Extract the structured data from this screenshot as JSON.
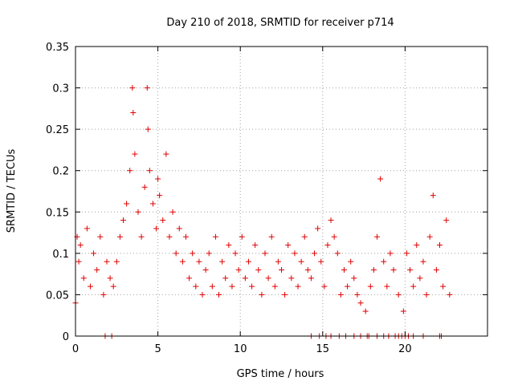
{
  "chart_data": {
    "type": "scatter",
    "title": "Day 210 of 2018, SRMTID for receiver p714",
    "xlabel": "GPS time / hours",
    "ylabel": "SRMTID / TECUs",
    "xlim": [
      0,
      25
    ],
    "ylim": [
      0,
      0.35
    ],
    "x_ticks": [
      0,
      5,
      10,
      15,
      20
    ],
    "x_tick_labels": [
      "0",
      "5",
      "10",
      "15",
      "20"
    ],
    "y_ticks": [
      0,
      0.05,
      0.1,
      0.15,
      0.2,
      0.25,
      0.3,
      0.35
    ],
    "y_tick_labels": [
      "0",
      "0.05",
      "0.1",
      "0.15",
      "0.2",
      "0.25",
      "0.3",
      "0.35"
    ],
    "grid": true,
    "marker": "plus",
    "series": [
      {
        "name": "SRMTID",
        "color": "#e00000",
        "x": [
          0.0,
          0.1,
          0.2,
          0.3,
          0.5,
          0.7,
          0.9,
          1.1,
          1.3,
          1.5,
          1.7,
          1.9,
          2.1,
          2.3,
          2.5,
          2.7,
          2.9,
          3.1,
          3.3,
          3.45,
          3.5,
          3.6,
          3.8,
          4.0,
          4.2,
          4.35,
          4.4,
          4.5,
          4.7,
          4.9,
          5.0,
          5.1,
          5.3,
          5.5,
          5.7,
          5.9,
          6.1,
          6.3,
          6.5,
          6.7,
          6.9,
          7.1,
          7.3,
          7.5,
          7.7,
          7.9,
          8.1,
          8.3,
          8.5,
          8.7,
          8.9,
          9.1,
          9.3,
          9.5,
          9.7,
          9.9,
          10.1,
          10.3,
          10.5,
          10.7,
          10.9,
          11.1,
          11.3,
          11.5,
          11.7,
          11.9,
          12.1,
          12.3,
          12.5,
          12.7,
          12.9,
          13.1,
          13.3,
          13.5,
          13.7,
          13.9,
          14.1,
          14.3,
          14.5,
          14.7,
          14.9,
          15.1,
          15.3,
          15.5,
          15.7,
          15.9,
          16.1,
          16.3,
          16.5,
          16.7,
          16.9,
          17.1,
          17.3,
          17.6,
          17.9,
          18.1,
          18.3,
          18.5,
          18.7,
          18.9,
          19.1,
          19.3,
          19.6,
          19.9,
          20.1,
          20.3,
          20.5,
          20.7,
          20.9,
          21.1,
          21.3,
          21.5,
          21.7,
          21.9,
          22.1,
          22.3,
          22.5,
          22.7
        ],
        "y": [
          0.04,
          0.12,
          0.09,
          0.11,
          0.07,
          0.13,
          0.06,
          0.1,
          0.08,
          0.12,
          0.05,
          0.09,
          0.07,
          0.06,
          0.09,
          0.12,
          0.14,
          0.16,
          0.2,
          0.3,
          0.27,
          0.22,
          0.15,
          0.12,
          0.18,
          0.3,
          0.25,
          0.2,
          0.16,
          0.13,
          0.19,
          0.17,
          0.14,
          0.22,
          0.12,
          0.15,
          0.1,
          0.13,
          0.09,
          0.12,
          0.07,
          0.1,
          0.06,
          0.09,
          0.05,
          0.08,
          0.1,
          0.06,
          0.12,
          0.05,
          0.09,
          0.07,
          0.11,
          0.06,
          0.1,
          0.08,
          0.12,
          0.07,
          0.09,
          0.06,
          0.11,
          0.08,
          0.05,
          0.1,
          0.07,
          0.12,
          0.06,
          0.09,
          0.08,
          0.05,
          0.11,
          0.07,
          0.1,
          0.06,
          0.09,
          0.12,
          0.08,
          0.07,
          0.1,
          0.13,
          0.09,
          0.06,
          0.11,
          0.14,
          0.12,
          0.1,
          0.05,
          0.08,
          0.06,
          0.09,
          0.07,
          0.05,
          0.04,
          0.03,
          0.06,
          0.08,
          0.12,
          0.19,
          0.09,
          0.06,
          0.1,
          0.08,
          0.05,
          0.03,
          0.1,
          0.08,
          0.06,
          0.11,
          0.07,
          0.09,
          0.05,
          0.12,
          0.17,
          0.08,
          0.11,
          0.06,
          0.14,
          0.05
        ],
        "zeros_x": [
          1.8,
          2.2,
          14.3,
          14.8,
          15.2,
          15.5,
          16.0,
          16.4,
          16.9,
          17.3,
          17.7,
          17.8,
          18.3,
          18.7,
          19.0,
          19.4,
          19.6,
          19.8,
          20.0,
          20.2,
          20.5,
          21.1,
          22.1,
          22.2
        ]
      }
    ]
  }
}
